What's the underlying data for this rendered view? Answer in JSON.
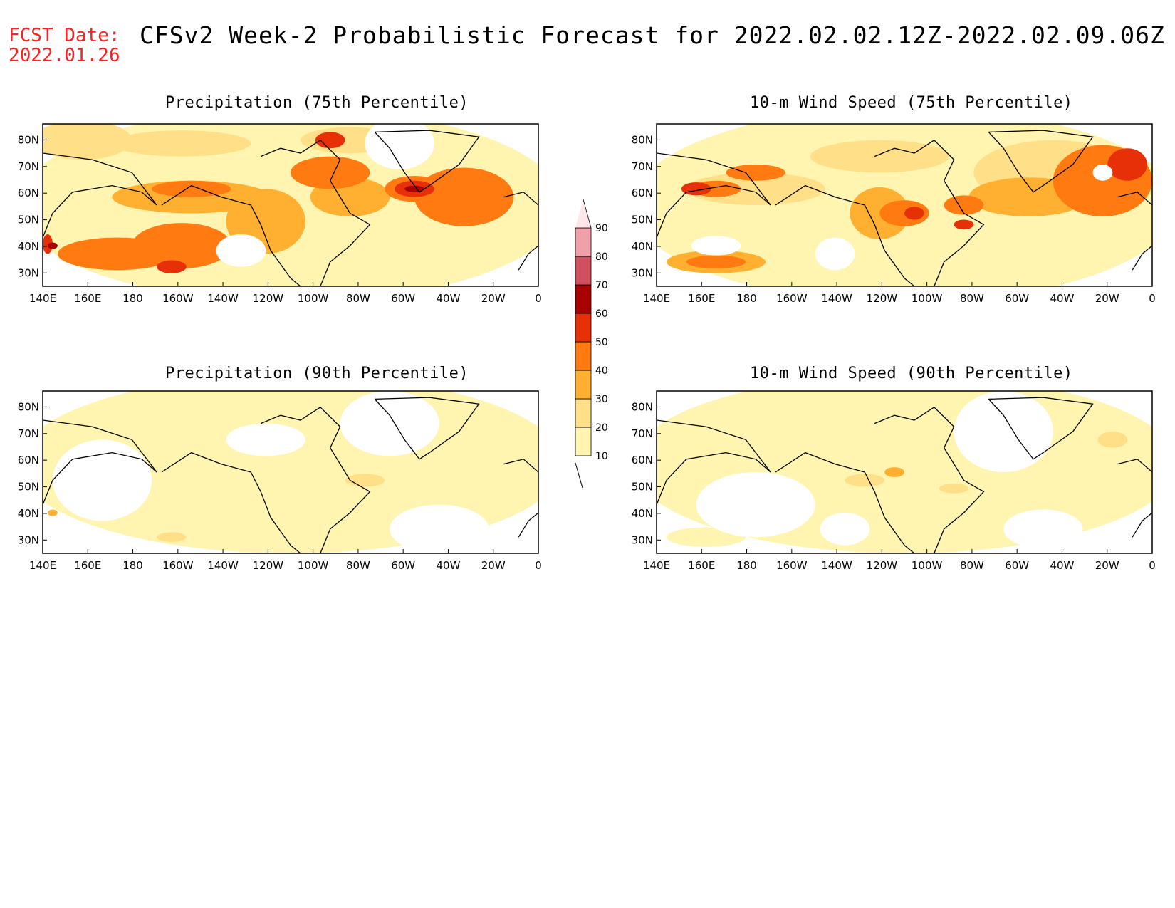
{
  "fcst_date": {
    "label": "FCST Date:",
    "value": "2022.01.26"
  },
  "title": "CFSv2 Week-2 Probabilistic Forecast for 2022.02.02.12Z-2022.02.09.06Z",
  "panels": [
    {
      "title": "Precipitation (75th Percentile)",
      "intensity": "high"
    },
    {
      "title": "10-m Wind Speed (75th Percentile)",
      "intensity": "high"
    },
    {
      "title": "Precipitation (90th Percentile)",
      "intensity": "low"
    },
    {
      "title": "10-m Wind Speed (90th Percentile)",
      "intensity": "low"
    }
  ],
  "lat_ticks": [
    "80N",
    "70N",
    "60N",
    "50N",
    "40N",
    "30N"
  ],
  "lon_ticks": [
    "140E",
    "160E",
    "180",
    "160W",
    "140W",
    "120W",
    "100W",
    "80W",
    "60W",
    "40W",
    "20W",
    "0"
  ],
  "colorbar": {
    "levels": [
      "10",
      "20",
      "30",
      "40",
      "50",
      "60",
      "70",
      "80",
      "90"
    ],
    "colors": [
      "#fff5b0",
      "#ffe088",
      "#ffb030",
      "#ff7a10",
      "#e83008",
      "#a80000",
      "#d05060",
      "#f0a0a8",
      "#ffe6ea"
    ]
  }
}
